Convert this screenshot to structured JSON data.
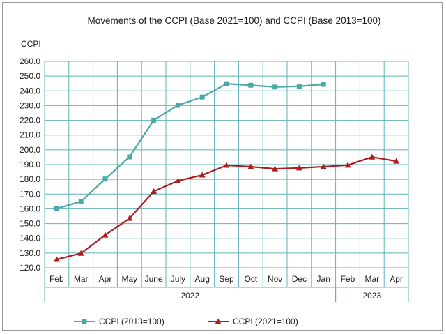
{
  "chart_data": {
    "type": "line",
    "title": "Movements of the CCPI (Base 2021=100) and CCPI (Base 2013=100)",
    "ylabel": "CCPI",
    "ylim": [
      120,
      260
    ],
    "ytick_step": 10,
    "ytick_labels": [
      "260.0",
      "250.0",
      "240.0",
      "230.0",
      "220.0",
      "210.0",
      "200.0",
      "190.0",
      "180.0",
      "170.0",
      "160.0",
      "150.0",
      "140.0",
      "130.0",
      "120.0"
    ],
    "categories": [
      "Feb",
      "Mar",
      "Apr",
      "May",
      "June",
      "July",
      "Aug",
      "Sep",
      "Oct",
      "Nov",
      "Dec",
      "Jan",
      "Feb",
      "Mar",
      "Apr"
    ],
    "year_groups": [
      {
        "label": "2022",
        "start": 0,
        "end": 11
      },
      {
        "label": "2023",
        "start": 12,
        "end": 14
      }
    ],
    "grid": true,
    "legend_position": "bottom",
    "series": [
      {
        "name": "CCPI (2013=100)",
        "color": "#4aa8a8",
        "marker": "square",
        "values": [
          160.1,
          165.0,
          180.2,
          195.2,
          220.1,
          230.2,
          235.8,
          244.8,
          243.8,
          242.6,
          243.1,
          244.4,
          null,
          null,
          null
        ]
      },
      {
        "name": "CCPI (2021=100)",
        "color": "#b01c1c",
        "marker": "triangle",
        "values": [
          125.7,
          129.8,
          142.2,
          153.5,
          171.8,
          179.0,
          182.9,
          189.5,
          188.6,
          187.1,
          187.7,
          188.6,
          189.6,
          195.1,
          192.3
        ]
      }
    ]
  }
}
